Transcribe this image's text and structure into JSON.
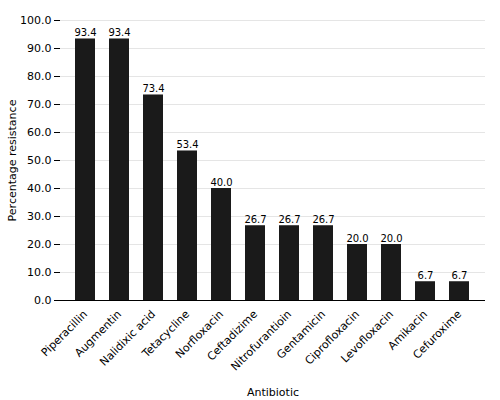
{
  "chart_data": {
    "type": "bar",
    "categories": [
      "Piperacillin",
      "Augmentin",
      "Nalidixic acid",
      "Tetacycline",
      "Norfloxacin",
      "Ceftadizime",
      "Nitrofurantioin",
      "Gentamicin",
      "Ciprofloxacin",
      "Levofloxacin",
      "Amikacin",
      "Cefuroxime"
    ],
    "values": [
      93.4,
      93.4,
      73.4,
      53.4,
      40.0,
      26.7,
      26.7,
      26.7,
      20.0,
      20.0,
      6.7,
      6.7
    ],
    "value_labels": [
      "93.4",
      "93.4",
      "73.4",
      "53.4",
      "40.0",
      "26.7",
      "26.7",
      "26.7",
      "20.0",
      "20.0",
      "6.7",
      "6.7"
    ],
    "data_labels": true,
    "color": "#1a1a1a",
    "xlabel": "Antibiotic",
    "ylabel": "Percentage resistance",
    "ylim": [
      0.0,
      100.0
    ],
    "yticks": [
      {
        "value": 0,
        "label": "0.0"
      },
      {
        "value": 10,
        "label": "10.0"
      },
      {
        "value": 20,
        "label": "20.0"
      },
      {
        "value": 30,
        "label": "30.0"
      },
      {
        "value": 40,
        "label": "40.0"
      },
      {
        "value": 50,
        "label": "50.0"
      },
      {
        "value": 60,
        "label": "60.0"
      },
      {
        "value": 70,
        "label": "70.0"
      },
      {
        "value": 80,
        "label": "80.0"
      },
      {
        "value": 90,
        "label": "90.0"
      },
      {
        "value": 100,
        "label": "100.0"
      }
    ],
    "grid": true
  }
}
